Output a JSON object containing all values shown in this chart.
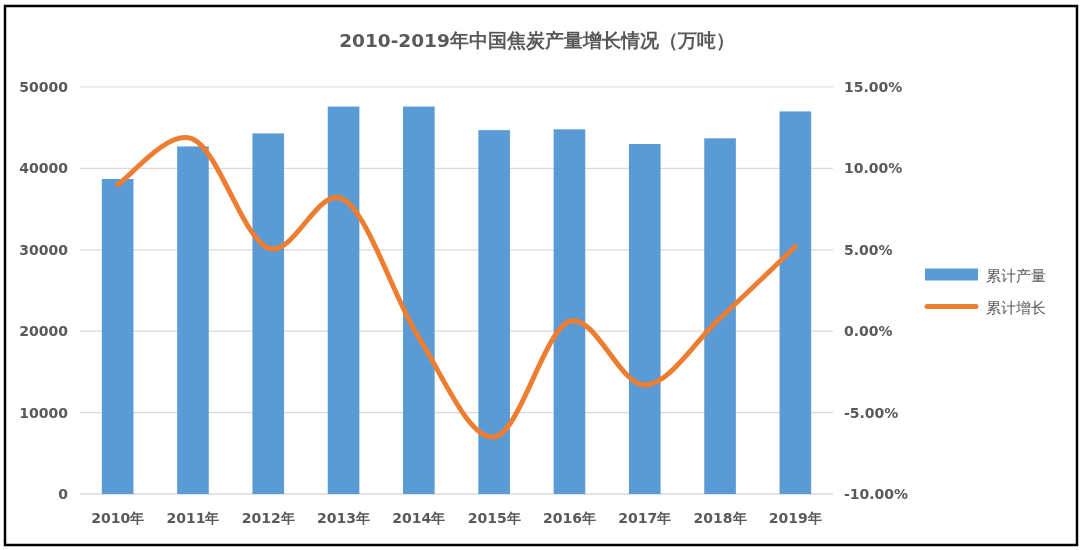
{
  "chart_data": {
    "type": "bar",
    "title": "2010-2019年中国焦炭产量增长情况（万吨）",
    "categories": [
      "2010年",
      "2011年",
      "2012年",
      "2013年",
      "2014年",
      "2015年",
      "2016年",
      "2017年",
      "2018年",
      "2019年"
    ],
    "series": [
      {
        "name": "累计产量",
        "color": "#5b9bd5",
        "values": [
          38700,
          42700,
          44300,
          47600,
          47600,
          44700,
          44800,
          43000,
          43700,
          47000
        ]
      },
      {
        "name": "累计增长",
        "type": "line",
        "axis": "y2",
        "color": "#ed7d31",
        "values": [
          9.0,
          11.8,
          5.1,
          8.1,
          -0.4,
          -6.5,
          0.6,
          -3.3,
          0.8,
          5.2
        ]
      }
    ],
    "ylim": [
      0,
      50000
    ],
    "yticks": [
      0,
      10000,
      20000,
      30000,
      40000,
      50000
    ],
    "y2lim": [
      -10,
      15
    ],
    "y2ticks": [
      {
        "value": -10,
        "label": "-10.00%"
      },
      {
        "value": -5,
        "label": "-5.00%"
      },
      {
        "value": 0,
        "label": "0.00%"
      },
      {
        "value": 5,
        "label": "5.00%"
      },
      {
        "value": 10,
        "label": "10.00%"
      },
      {
        "value": 15,
        "label": "15.00%"
      }
    ],
    "grid": "y",
    "legend": "right"
  }
}
